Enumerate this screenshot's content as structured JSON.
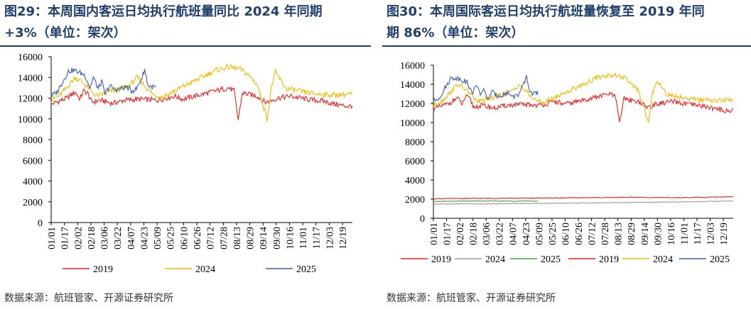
{
  "figures": [
    {
      "title_line1": "图29：本周国内客运日均执行航班量同比 2024 年同期",
      "title_line2": "+3%（单位：架次）",
      "source": "数据来源：航班管家、开源证券研究所"
    },
    {
      "title_line1": "图30：本周国际客运日均执行航班量恢复至 2019 年同",
      "title_line2": "期 86%（单位：架次）",
      "source": "数据来源：航班管家、开源证券研究所"
    }
  ],
  "chart_data": [
    {
      "type": "line",
      "title": "",
      "xlabel": "",
      "ylabel": "",
      "ylim": [
        0,
        16000
      ],
      "yticks": [
        "0",
        "2000",
        "4000",
        "6000",
        "8000",
        "10000",
        "12000",
        "14000",
        "16000"
      ],
      "xticks": [
        "01/01",
        "01/17",
        "02/02",
        "02/18",
        "03/06",
        "03/22",
        "04/07",
        "04/23",
        "05/09",
        "05/25",
        "06/10",
        "06/26",
        "07/12",
        "07/28",
        "08/13",
        "08/29",
        "09/14",
        "09/30",
        "10/16",
        "11/01",
        "11/17",
        "12/03",
        "12/19"
      ],
      "legend_position": "bottom",
      "grid": false,
      "series": [
        {
          "name": "2019",
          "color": "#e8211e",
          "x": [
            1,
            10,
            20,
            30,
            36,
            40,
            45,
            50,
            60,
            75,
            90,
            110,
            130,
            150,
            160,
            180,
            200,
            215,
            222,
            227,
            232,
            250,
            260,
            275,
            290,
            310,
            330,
            345,
            360,
            365
          ],
          "values": [
            11400,
            11700,
            12000,
            12600,
            11900,
            12700,
            12500,
            11600,
            11800,
            11500,
            11800,
            11900,
            11800,
            12200,
            11900,
            12300,
            12700,
            13000,
            12700,
            9900,
            12500,
            12200,
            11600,
            12000,
            12200,
            11900,
            11700,
            11400,
            11200,
            11300
          ]
        },
        {
          "name": "2024",
          "color": "#f2b800",
          "x": [
            1,
            10,
            20,
            30,
            38,
            48,
            55,
            65,
            75,
            85,
            95,
            105,
            115,
            125,
            135,
            145,
            160,
            180,
            200,
            215,
            230,
            240,
            250,
            262,
            267,
            272,
            285,
            300,
            320,
            340,
            365
          ],
          "values": [
            11800,
            12200,
            13000,
            14000,
            13600,
            12800,
            12200,
            12400,
            12700,
            12900,
            13200,
            14000,
            13100,
            12300,
            12100,
            12500,
            13100,
            13900,
            14700,
            15000,
            14800,
            14200,
            13300,
            10000,
            13000,
            14500,
            12900,
            12700,
            12400,
            12300,
            12400
          ]
        },
        {
          "name": "2025",
          "color": "#3a5fad",
          "x": [
            1,
            8,
            15,
            22,
            28,
            35,
            42,
            48,
            52,
            58,
            62,
            66,
            72,
            78,
            85,
            92,
            98,
            104,
            110,
            114,
            118,
            122,
            128
          ],
          "values": [
            12200,
            12600,
            13600,
            14600,
            14700,
            14500,
            14200,
            13000,
            14000,
            12900,
            13600,
            12400,
            13200,
            12800,
            12900,
            13100,
            12700,
            12900,
            13800,
            14800,
            13200,
            13100,
            13000
          ]
        }
      ]
    },
    {
      "type": "line",
      "title": "",
      "xlabel": "",
      "ylabel": "",
      "ylim": [
        0,
        16000
      ],
      "yticks": [
        "0",
        "2000",
        "4000",
        "6000",
        "8000",
        "10000",
        "12000",
        "14000",
        "16000"
      ],
      "xticks": [
        "01/01",
        "01/17",
        "02/02",
        "02/18",
        "03/06",
        "03/22",
        "04/07",
        "04/23",
        "05/09",
        "05/25",
        "06/10",
        "06/26",
        "07/12",
        "07/28",
        "08/13",
        "08/29",
        "09/14",
        "09/30",
        "10/16",
        "11/01",
        "11/17",
        "12/03",
        "12/19"
      ],
      "legend_position": "bottom",
      "grid": false,
      "series": [
        {
          "name": "2019",
          "color": "#e8211e",
          "x": [
            1,
            60,
            120,
            180,
            240,
            300,
            365
          ],
          "values": [
            2050,
            2080,
            2100,
            2150,
            2200,
            2150,
            2250
          ]
        },
        {
          "name": "2024",
          "color": "#9b9b9b",
          "x": [
            1,
            60,
            120,
            180,
            240,
            300,
            365
          ],
          "values": [
            1500,
            1500,
            1550,
            1600,
            1650,
            1700,
            1800
          ]
        },
        {
          "name": "2025",
          "color": "#48a23f",
          "x": [
            1,
            40,
            80,
            128
          ],
          "values": [
            1750,
            1800,
            1800,
            1800
          ]
        },
        {
          "name": "2019",
          "color": "#e8211e",
          "x": [
            1,
            10,
            20,
            30,
            36,
            40,
            45,
            50,
            60,
            75,
            90,
            110,
            130,
            150,
            160,
            180,
            200,
            215,
            222,
            227,
            232,
            250,
            260,
            275,
            290,
            310,
            330,
            345,
            360,
            365
          ],
          "values": [
            11400,
            11700,
            12000,
            12600,
            11900,
            12700,
            12500,
            11600,
            11800,
            11500,
            11800,
            11900,
            11800,
            12200,
            11900,
            12300,
            12700,
            13000,
            12700,
            9900,
            12500,
            12200,
            11600,
            12000,
            12200,
            11900,
            11700,
            11400,
            11200,
            11300
          ]
        },
        {
          "name": "2024",
          "color": "#f2b800",
          "x": [
            1,
            10,
            20,
            30,
            38,
            48,
            55,
            65,
            75,
            85,
            95,
            105,
            115,
            125,
            135,
            145,
            160,
            180,
            200,
            215,
            230,
            240,
            250,
            262,
            267,
            272,
            285,
            300,
            320,
            340,
            365
          ],
          "values": [
            11800,
            12200,
            13000,
            14000,
            13600,
            12800,
            12200,
            12400,
            12700,
            12900,
            13200,
            14000,
            13100,
            12300,
            12100,
            12500,
            13100,
            13900,
            14700,
            15000,
            14800,
            14200,
            13300,
            10000,
            13000,
            14500,
            12900,
            12700,
            12400,
            12300,
            12400
          ]
        },
        {
          "name": "2025",
          "color": "#3a5fad",
          "x": [
            1,
            8,
            15,
            22,
            28,
            35,
            42,
            48,
            52,
            58,
            62,
            66,
            72,
            78,
            85,
            92,
            98,
            104,
            110,
            114,
            118,
            122,
            128
          ],
          "values": [
            12200,
            12600,
            13600,
            14600,
            14700,
            14500,
            14200,
            13000,
            14000,
            12900,
            13600,
            12400,
            13200,
            12800,
            12900,
            13100,
            12700,
            12900,
            13800,
            14800,
            13200,
            13100,
            13000
          ]
        }
      ]
    }
  ]
}
